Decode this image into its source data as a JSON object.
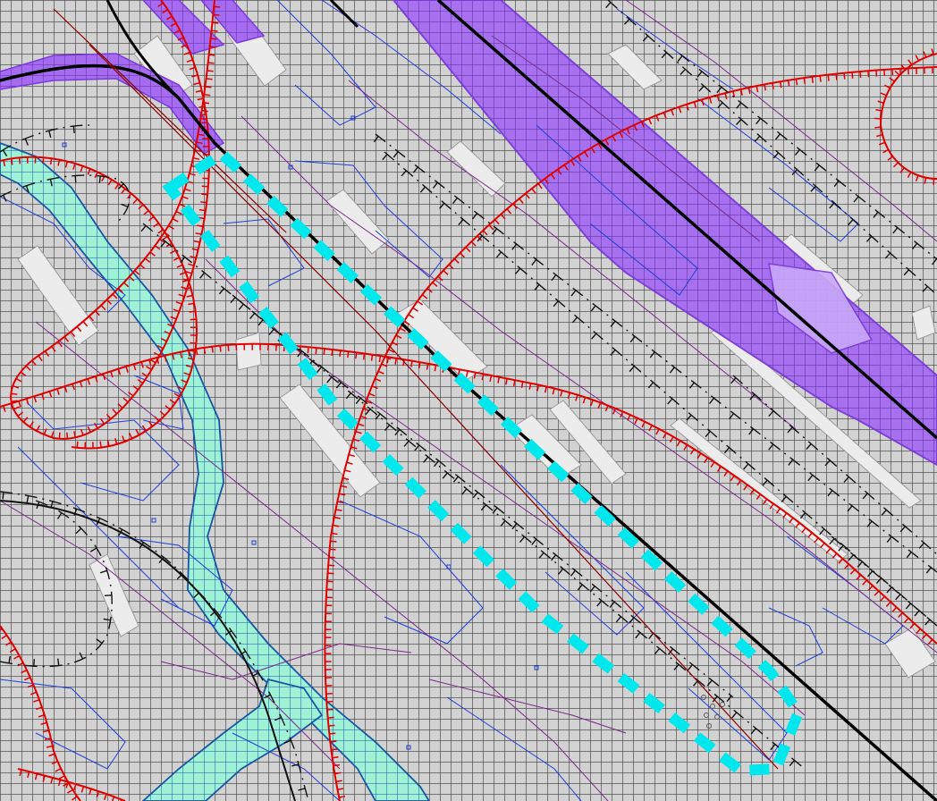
{
  "map": {
    "colors": {
      "background": "#c8c8c8",
      "grid_line": "#3a3a3a",
      "grid_cell_fill": "#d2d2d2",
      "building_fill": "#ececec",
      "railway_corridor": "#a56bf0",
      "railway_corridor_edge": "#7a3ad8",
      "railway_track": "#000000",
      "water_channel": "#9ff2d6",
      "water_channel_edge": "#1a56a0",
      "contour_red": "#e00000",
      "parcel_blue": "#1f3fd8",
      "parcel_purple": "#7a2a8a",
      "dashed_black": "#111111",
      "highlight_boundary": "#00e8ee",
      "road_line": "#8a0000"
    },
    "layers": [
      "grid",
      "buildings",
      "railway-corridor",
      "water-channel",
      "parcel-lines",
      "contour-lines",
      "rail-tracks",
      "highlight-boundary"
    ],
    "highlight": {
      "style": "dashed",
      "color_key": "highlight_boundary"
    }
  }
}
